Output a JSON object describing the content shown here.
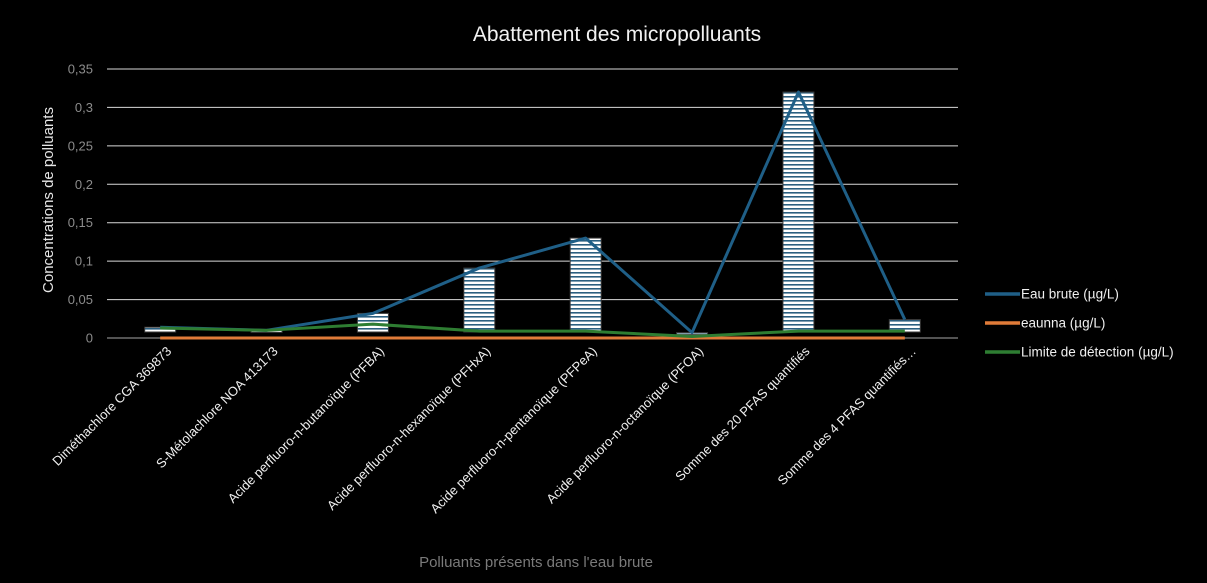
{
  "chart_data": {
    "type": "bar",
    "title": "Abattement des micropolluants",
    "xlabel": "Polluants présents dans l'eau brute",
    "ylabel": "Concentrations de polluants",
    "ylim": [
      0,
      0.35
    ],
    "yticks": [
      "0",
      "0,05",
      "0,1",
      "0,15",
      "0,2",
      "0,25",
      "0,3",
      "0,35"
    ],
    "ytick_values": [
      0,
      0.05,
      0.1,
      0.15,
      0.2,
      0.25,
      0.3,
      0.35
    ],
    "grid": true,
    "legend_position": "right",
    "categories": [
      "Diméthachlore CGA 369873",
      "S-Métolachlore NOA 413173",
      "Acide perfluoro-n-butanoïque (PFBA)",
      "Acide perfluoro-n-hexanoïque (PFHxA)",
      "Acide perfluoro-n-pentanoïque (PFPeA)",
      "Acide perfluoro-n-octanoïque (PFOA)",
      "Somme des 20 PFAS quantifiés",
      "Somme des 4 PFAS quantifiés…"
    ],
    "bars": {
      "values": [
        0.014,
        0.01,
        0.032,
        0.091,
        0.13,
        0.007,
        0.32,
        0.024
      ],
      "fill_color": "#ffffff",
      "stripe_color": "#2b5f80"
    },
    "series": [
      {
        "name": "Eau brute (µg/L)",
        "type": "line",
        "color": "#1f5f87",
        "values": [
          0.014,
          0.01,
          0.032,
          0.091,
          0.13,
          0.007,
          0.32,
          0.024
        ]
      },
      {
        "name": "eaunna (µg/L)",
        "type": "line",
        "color": "#e07b39",
        "values": [
          0,
          0,
          0,
          0,
          0,
          0,
          0,
          0
        ]
      },
      {
        "name": "Limite de détection (µg/L)",
        "type": "line",
        "color": "#2e7d32",
        "values": [
          0.013,
          0.01,
          0.018,
          0.009,
          0.009,
          0.002,
          0.009,
          0.009
        ]
      }
    ]
  }
}
